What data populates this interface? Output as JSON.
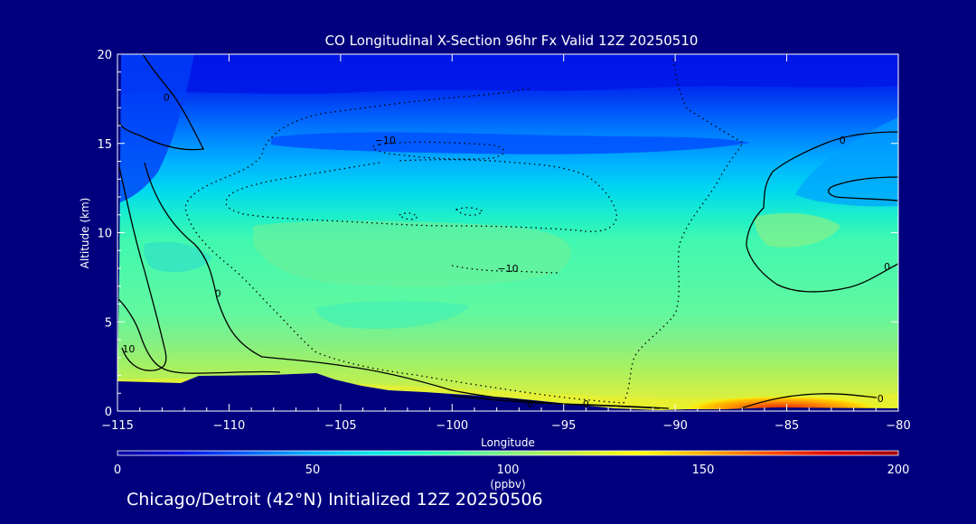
{
  "chart_data": {
    "type": "heatmap",
    "title": "CO Longitudinal X-Section 96hr  Fx Valid 12Z 20250510",
    "xlabel": "Longitude",
    "ylabel": "Altitude (km)",
    "xlim": [
      -115,
      -80
    ],
    "ylim": [
      0,
      20
    ],
    "x_ticks": [
      -115,
      -110,
      -105,
      -100,
      -95,
      -90,
      -85,
      -80
    ],
    "y_ticks": [
      0,
      5,
      10,
      15,
      20
    ],
    "colorbar": {
      "label": "(ppbv)",
      "range": [
        0,
        200
      ],
      "ticks": [
        0,
        50,
        100,
        150,
        200
      ],
      "colors": [
        "#0000a0",
        "#0010e0",
        "#0060ff",
        "#00b0ff",
        "#00e8e8",
        "#30f8b0",
        "#80f080",
        "#c8f040",
        "#ffff00",
        "#ffb000",
        "#ff5000",
        "#e00000",
        "#a00000"
      ]
    },
    "contour_labels": [
      {
        "text": "0",
        "lon": -112.8,
        "alt": 17.6
      },
      {
        "text": "0",
        "lon": -110.5,
        "alt": 6.6
      },
      {
        "text": "10",
        "lon": -114.5,
        "alt": 3.5
      },
      {
        "text": "-10",
        "lon": -103.0,
        "alt": 15.2
      },
      {
        "text": "-10",
        "lon": -97.5,
        "alt": 8.0
      },
      {
        "text": "0",
        "lon": -96.5,
        "alt": 0.4
      },
      {
        "text": "0",
        "lon": -94.0,
        "alt": 0.4
      },
      {
        "text": "0",
        "lon": -82.5,
        "alt": 15.2
      },
      {
        "text": "0",
        "lon": -80.5,
        "alt": 8.1
      },
      {
        "text": "0",
        "lon": -80.8,
        "alt": 0.7
      }
    ]
  },
  "footer": {
    "location": "Chicago/Detroit (42°N) Initialized 12Z 20250506"
  }
}
